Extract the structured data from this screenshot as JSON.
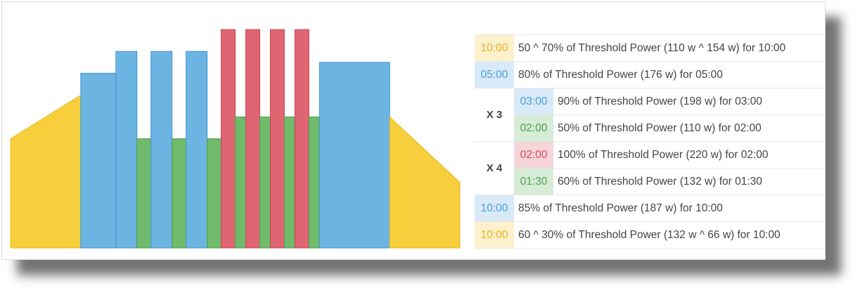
{
  "colors": {
    "warmup": "#f7cf3d",
    "endurance": "#6cb5e3",
    "recovery": "#6fbb6b",
    "threshold": "#e06572"
  },
  "chart_data": {
    "type": "bar",
    "ylim": [
      0,
      110
    ],
    "segments": [
      {
        "zone": "warmup",
        "duration_min": 10,
        "start_pct": 50,
        "end_pct": 70
      },
      {
        "zone": "endurance",
        "duration_min": 5,
        "pct": 80
      },
      {
        "zone": "endurance",
        "duration_min": 3,
        "pct": 90
      },
      {
        "zone": "recovery",
        "duration_min": 2,
        "pct": 50
      },
      {
        "zone": "endurance",
        "duration_min": 3,
        "pct": 90
      },
      {
        "zone": "recovery",
        "duration_min": 2,
        "pct": 50
      },
      {
        "zone": "endurance",
        "duration_min": 3,
        "pct": 90
      },
      {
        "zone": "recovery",
        "duration_min": 2,
        "pct": 50
      },
      {
        "zone": "threshold",
        "duration_min": 2,
        "pct": 100
      },
      {
        "zone": "recovery",
        "duration_min": 1.5,
        "pct": 60
      },
      {
        "zone": "threshold",
        "duration_min": 2,
        "pct": 100
      },
      {
        "zone": "recovery",
        "duration_min": 1.5,
        "pct": 60
      },
      {
        "zone": "threshold",
        "duration_min": 2,
        "pct": 100
      },
      {
        "zone": "recovery",
        "duration_min": 1.5,
        "pct": 60
      },
      {
        "zone": "threshold",
        "duration_min": 2,
        "pct": 100
      },
      {
        "zone": "recovery",
        "duration_min": 1.5,
        "pct": 60
      },
      {
        "zone": "endurance",
        "duration_min": 10,
        "pct": 85
      },
      {
        "zone": "warmup",
        "duration_min": 10,
        "start_pct": 60,
        "end_pct": 30
      }
    ]
  },
  "table": {
    "rows": [
      {
        "type": "single",
        "zone": "warmup",
        "duration": "10:00",
        "description": "50 ^ 70% of Threshold Power (110 w ^ 154 w) for 10:00"
      },
      {
        "type": "single",
        "zone": "endurance",
        "duration": "05:00",
        "description": "80% of Threshold Power (176 w) for 05:00"
      },
      {
        "type": "repeat",
        "label": "X 3",
        "steps": [
          {
            "zone": "endurance",
            "duration": "03:00",
            "description": "90% of Threshold Power (198 w) for 03:00"
          },
          {
            "zone": "recovery",
            "duration": "02:00",
            "description": "50% of Threshold Power (110 w) for 02:00"
          }
        ]
      },
      {
        "type": "repeat",
        "label": "X 4",
        "steps": [
          {
            "zone": "threshold",
            "duration": "02:00",
            "description": "100% of Threshold Power (220 w) for 02:00"
          },
          {
            "zone": "recovery",
            "duration": "01:30",
            "description": "60% of Threshold Power (132 w) for 01:30"
          }
        ]
      },
      {
        "type": "single",
        "zone": "endurance",
        "duration": "10:00",
        "description": "85% of Threshold Power (187 w) for 10:00"
      },
      {
        "type": "single",
        "zone": "warmup",
        "duration": "10:00",
        "description": "60 ^ 30% of Threshold Power (132 w ^ 66 w) for 10:00"
      }
    ]
  }
}
